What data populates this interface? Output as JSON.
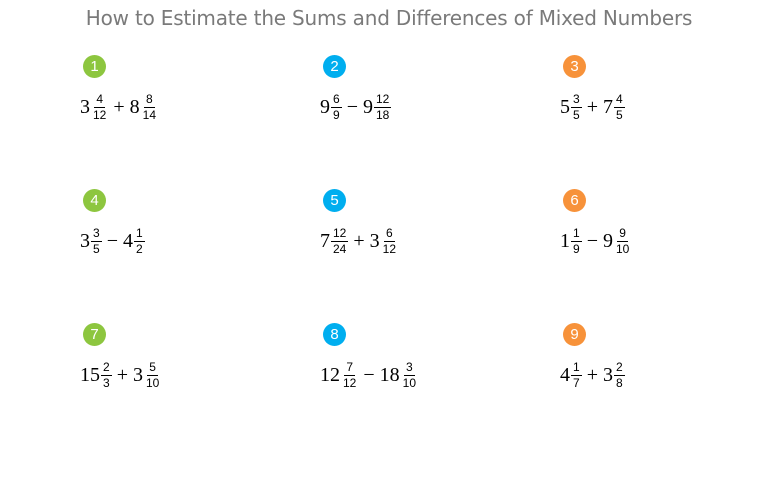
{
  "title": "How to Estimate the Sums and Differences of Mixed Numbers",
  "colors": {
    "green": "#8dc63f",
    "blue": "#00aeef",
    "orange": "#f7923a"
  },
  "problems": [
    {
      "number": "1",
      "color": "#8dc63f",
      "a": {
        "whole": "3",
        "num": "4",
        "den": "12"
      },
      "op": "+",
      "b": {
        "whole": "8",
        "num": "8",
        "den": "14"
      }
    },
    {
      "number": "2",
      "color": "#00aeef",
      "a": {
        "whole": "9",
        "num": "6",
        "den": "9"
      },
      "op": "−",
      "b": {
        "whole": "9",
        "num": "12",
        "den": "18"
      }
    },
    {
      "number": "3",
      "color": "#f7923a",
      "a": {
        "whole": "5",
        "num": "3",
        "den": "5"
      },
      "op": "+",
      "b": {
        "whole": "7",
        "num": "4",
        "den": "5"
      }
    },
    {
      "number": "4",
      "color": "#8dc63f",
      "a": {
        "whole": "3",
        "num": "3",
        "den": "5"
      },
      "op": "−",
      "b": {
        "whole": "4",
        "num": "1",
        "den": "2"
      }
    },
    {
      "number": "5",
      "color": "#00aeef",
      "a": {
        "whole": "7",
        "num": "12",
        "den": "24"
      },
      "op": "+",
      "b": {
        "whole": "3",
        "num": "6",
        "den": "12"
      }
    },
    {
      "number": "6",
      "color": "#f7923a",
      "a": {
        "whole": "1",
        "num": "1",
        "den": "9"
      },
      "op": "−",
      "b": {
        "whole": "9",
        "num": "9",
        "den": "10"
      }
    },
    {
      "number": "7",
      "color": "#8dc63f",
      "a": {
        "whole": "15",
        "num": "2",
        "den": "3"
      },
      "op": "+",
      "b": {
        "whole": "3",
        "num": "5",
        "den": "10"
      }
    },
    {
      "number": "8",
      "color": "#00aeef",
      "a": {
        "whole": "12",
        "num": "7",
        "den": "12"
      },
      "op": "−",
      "b": {
        "whole": "18",
        "num": "3",
        "den": "10"
      }
    },
    {
      "number": "9",
      "color": "#f7923a",
      "a": {
        "whole": "4",
        "num": "1",
        "den": "7"
      },
      "op": "+",
      "b": {
        "whole": "3",
        "num": "2",
        "den": "8"
      }
    }
  ]
}
